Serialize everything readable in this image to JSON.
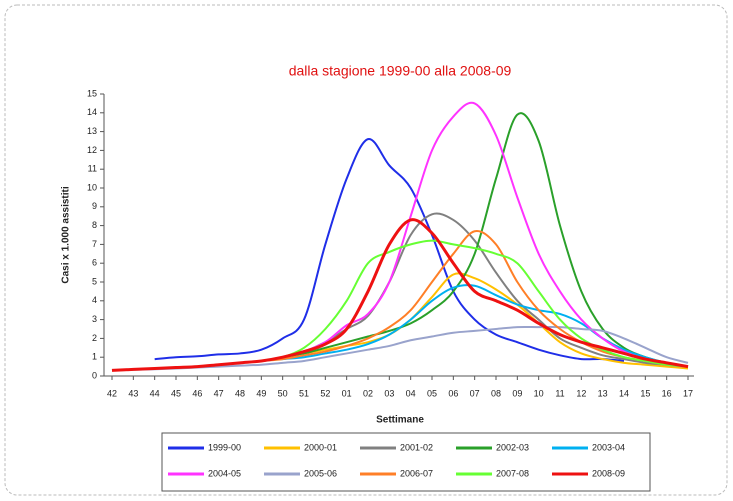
{
  "chart_data": {
    "type": "line",
    "title": "dalla stagione 1999-00 alla 2008-09",
    "ylabel": "Casi x 1.000 assistiti",
    "xlabel": "Settimane",
    "categories": [
      "42",
      "43",
      "44",
      "45",
      "46",
      "47",
      "48",
      "49",
      "50",
      "51",
      "52",
      "01",
      "02",
      "03",
      "04",
      "05",
      "06",
      "07",
      "08",
      "09",
      "10",
      "11",
      "12",
      "13",
      "14",
      "15",
      "16",
      "17"
    ],
    "ylim": [
      0,
      15
    ],
    "yticks": [
      0,
      1,
      2,
      3,
      4,
      5,
      6,
      7,
      8,
      9,
      10,
      11,
      12,
      13,
      14,
      15
    ],
    "grid": false,
    "legend": "bottom",
    "series": [
      {
        "name": "1999-00",
        "color": "#1f2ee8",
        "values": [
          null,
          null,
          0.9,
          1.0,
          1.05,
          1.15,
          1.2,
          1.4,
          2.0,
          3.0,
          7.0,
          10.5,
          12.6,
          11.2,
          10.0,
          7.5,
          4.5,
          3.0,
          2.2,
          1.8,
          1.4,
          1.1,
          0.9,
          0.9,
          0.8,
          null,
          null,
          null
        ]
      },
      {
        "name": "2000-01",
        "color": "#ffc000",
        "values": [
          0.3,
          0.35,
          0.4,
          0.45,
          0.5,
          0.6,
          0.7,
          0.8,
          1.0,
          1.2,
          1.4,
          1.6,
          1.8,
          2.2,
          3.0,
          4.2,
          5.4,
          5.2,
          4.6,
          3.8,
          2.8,
          1.8,
          1.2,
          0.9,
          0.7,
          0.6,
          0.5,
          0.4
        ]
      },
      {
        "name": "2001-02",
        "color": "#808080",
        "values": [
          0.3,
          0.35,
          0.4,
          0.45,
          0.5,
          0.6,
          0.7,
          0.8,
          1.0,
          1.3,
          1.8,
          2.5,
          3.2,
          5.0,
          7.5,
          8.6,
          8.3,
          7.2,
          5.5,
          4.0,
          3.0,
          2.0,
          1.5,
          1.1,
          0.9,
          0.7,
          0.6,
          0.5
        ]
      },
      {
        "name": "2002-03",
        "color": "#2aa02a",
        "values": [
          0.3,
          0.35,
          0.4,
          0.45,
          0.5,
          0.6,
          0.7,
          0.8,
          1.0,
          1.2,
          1.5,
          1.8,
          2.1,
          2.4,
          2.8,
          3.5,
          4.5,
          6.5,
          10.5,
          13.9,
          12.5,
          8.0,
          4.5,
          2.5,
          1.5,
          1.0,
          0.7,
          0.5
        ]
      },
      {
        "name": "2003-04",
        "color": "#00b0f0",
        "values": [
          0.3,
          0.35,
          0.4,
          0.45,
          0.5,
          0.6,
          0.7,
          0.8,
          0.9,
          1.0,
          1.2,
          1.4,
          1.7,
          2.2,
          3.0,
          4.0,
          4.7,
          4.8,
          4.3,
          3.8,
          3.5,
          3.3,
          2.8,
          2.0,
          1.4,
          1.0,
          0.7,
          0.5
        ]
      },
      {
        "name": "2004-05",
        "color": "#ff33ff",
        "values": [
          0.3,
          0.35,
          0.4,
          0.45,
          0.5,
          0.6,
          0.7,
          0.8,
          1.0,
          1.3,
          1.8,
          2.7,
          3.3,
          5.0,
          8.5,
          12.0,
          13.8,
          14.5,
          12.8,
          9.5,
          6.5,
          4.5,
          3.0,
          2.0,
          1.3,
          0.9,
          0.6,
          0.5
        ]
      },
      {
        "name": "2005-06",
        "color": "#99a3cc",
        "values": [
          0.3,
          0.33,
          0.36,
          0.4,
          0.45,
          0.5,
          0.55,
          0.6,
          0.7,
          0.8,
          1.0,
          1.2,
          1.4,
          1.6,
          1.9,
          2.1,
          2.3,
          2.4,
          2.5,
          2.6,
          2.6,
          2.6,
          2.5,
          2.4,
          2.0,
          1.5,
          1.0,
          0.7
        ]
      },
      {
        "name": "2006-07",
        "color": "#ff7f27",
        "values": [
          0.3,
          0.35,
          0.4,
          0.45,
          0.5,
          0.6,
          0.7,
          0.8,
          0.9,
          1.1,
          1.3,
          1.6,
          2.0,
          2.6,
          3.5,
          5.0,
          6.5,
          7.7,
          7.0,
          5.0,
          3.5,
          2.5,
          1.8,
          1.3,
          1.0,
          0.8,
          0.6,
          0.5
        ]
      },
      {
        "name": "2007-08",
        "color": "#66ff33",
        "values": [
          0.3,
          0.35,
          0.4,
          0.45,
          0.5,
          0.6,
          0.7,
          0.8,
          1.0,
          1.5,
          2.5,
          4.0,
          6.0,
          6.6,
          7.0,
          7.2,
          7.0,
          6.8,
          6.5,
          6.0,
          4.5,
          3.0,
          2.0,
          1.4,
          1.0,
          0.8,
          0.6,
          0.5
        ]
      },
      {
        "name": "2008-09",
        "color": "#ee1111",
        "values": [
          0.3,
          0.35,
          0.4,
          0.45,
          0.5,
          0.6,
          0.7,
          0.8,
          1.0,
          1.3,
          1.7,
          2.5,
          4.5,
          7.0,
          8.3,
          7.6,
          6.0,
          4.5,
          4.0,
          3.5,
          2.8,
          2.2,
          1.8,
          1.5,
          1.2,
          0.9,
          0.7,
          0.5
        ]
      }
    ]
  }
}
